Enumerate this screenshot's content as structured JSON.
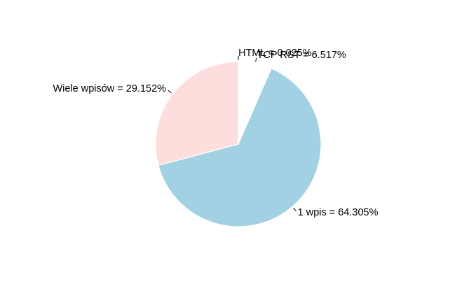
{
  "chart_data": {
    "type": "pie",
    "title": "",
    "start_angle_deg": 90,
    "direction": "clockwise",
    "legend": "none",
    "slices": [
      {
        "label": "HTML = 0.025%",
        "value": 0.025,
        "color": "#f0f0f0",
        "explode": 0.0
      },
      {
        "label": "TCP RST = 6.517%",
        "value": 6.517,
        "color": "#ffffff",
        "explode": 0.0
      },
      {
        "label": "1 wpis = 64.305%",
        "value": 64.305,
        "color": "#a1d1e2",
        "explode": 0.0
      },
      {
        "label": "Wiele wpisów = 29.152%",
        "value": 29.152,
        "color": "#fddedd",
        "explode": 0.0
      }
    ]
  }
}
